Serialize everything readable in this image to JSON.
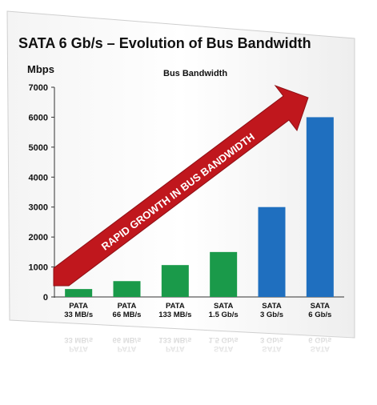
{
  "chart_data": {
    "type": "bar",
    "title": "SATA 6 Gb/s – Evolution of Bus Bandwidth",
    "ylabel": "Mbps",
    "legend": "Bus Bandwidth",
    "categories": [
      [
        "PATA",
        "33 MB/s"
      ],
      [
        "PATA",
        "66 MB/s"
      ],
      [
        "PATA",
        "133 MB/s"
      ],
      [
        "SATA",
        "1.5 Gb/s"
      ],
      [
        "SATA",
        "3 Gb/s"
      ],
      [
        "SATA",
        "6 Gb/s"
      ]
    ],
    "values": [
      264,
      528,
      1064,
      1500,
      3000,
      6000
    ],
    "bar_colors": [
      "#1a9a4a",
      "#1a9a4a",
      "#1a9a4a",
      "#1a9a4a",
      "#1f6fbf",
      "#1f6fbf"
    ],
    "ylim": [
      0,
      7000
    ],
    "yticks": [
      "0",
      "1000",
      "2000",
      "3000",
      "4000",
      "5000",
      "6000",
      "7000"
    ],
    "grid": false,
    "annotation": "RAPID GROWTH IN BUS BANDWIDTH",
    "annotation_color": "#c0171d"
  }
}
